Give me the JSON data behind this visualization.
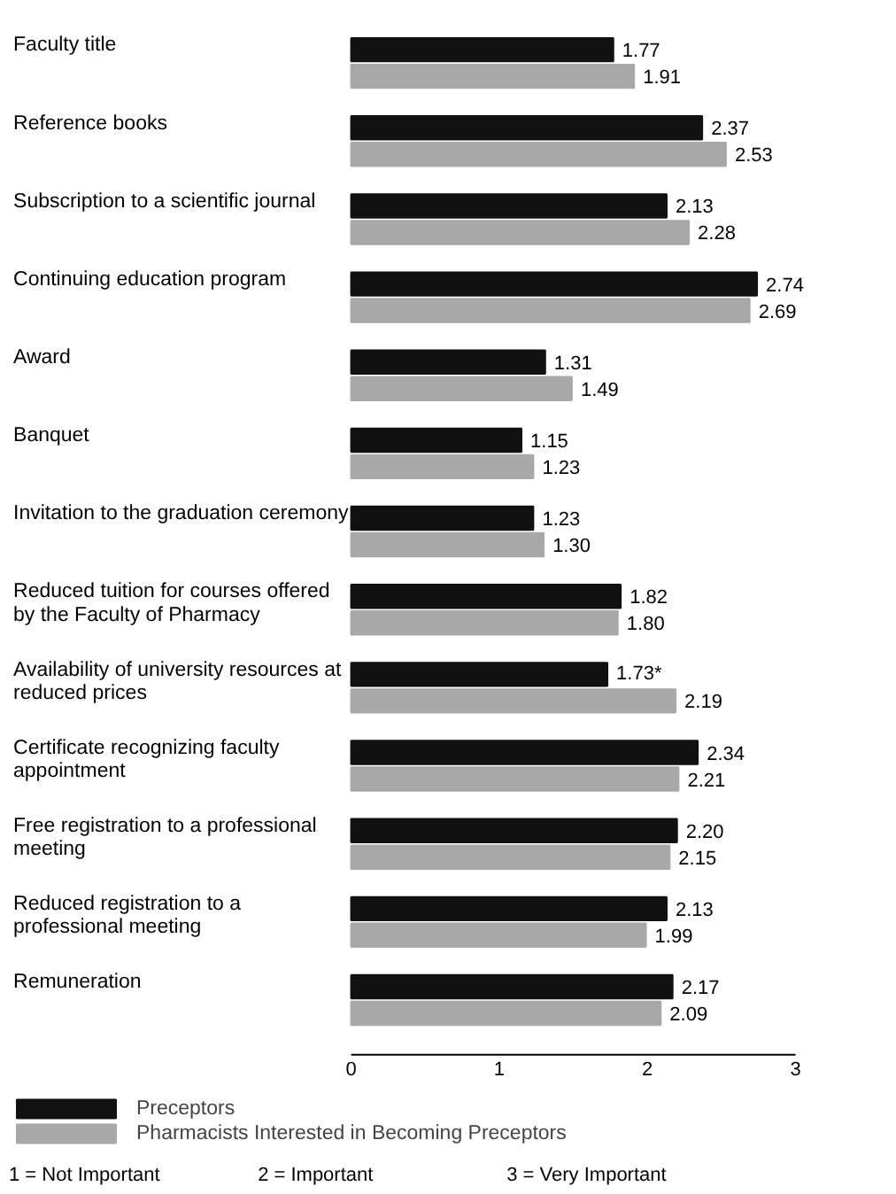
{
  "chart_data": {
    "type": "bar",
    "orientation": "horizontal",
    "categories": [
      "Faculty title",
      "Reference books",
      "Subscription to a scientific journal",
      "Continuing education program",
      "Award",
      "Banquet",
      "Invitation to the graduation ceremony",
      "Reduced tuition for courses offered\nby the Faculty of Pharmacy",
      "Availability of university resources at\nreduced prices",
      "Certificate recognizing faculty\nappointment",
      "Free registration to a professional\nmeeting",
      "Reduced registration to a\nprofessional meeting",
      "Remuneration"
    ],
    "series": [
      {
        "name": "Preceptors",
        "color": "#111111",
        "values": [
          1.77,
          2.37,
          2.13,
          2.74,
          1.31,
          1.15,
          1.23,
          1.82,
          1.73,
          2.34,
          2.2,
          2.13,
          2.17
        ],
        "value_labels": [
          "1.77",
          "2.37",
          "2.13",
          "2.74",
          "1.31",
          "1.15",
          "1.23",
          "1.82",
          "1.73*",
          "2.34",
          "2.20",
          "2.13",
          "2.17"
        ]
      },
      {
        "name": "Pharmacists Interested in Becoming Preceptors",
        "color": "#a8a8a8",
        "values": [
          1.91,
          2.53,
          2.28,
          2.69,
          1.49,
          1.23,
          1.3,
          1.8,
          2.19,
          2.21,
          2.15,
          1.99,
          2.09
        ],
        "value_labels": [
          "1.91",
          "2.53",
          "2.28",
          "2.69",
          "1.49",
          "1.23",
          "1.30",
          "1.80",
          "2.19",
          "2.21",
          "2.15",
          "1.99",
          "2.09"
        ]
      }
    ],
    "xlim": [
      0,
      3
    ],
    "xticks": [
      0,
      1,
      2,
      3
    ],
    "grid": false,
    "legend": "bottom",
    "annotations": [
      "1 = Not Important",
      "2 = Important",
      "3 = Very Important"
    ]
  }
}
